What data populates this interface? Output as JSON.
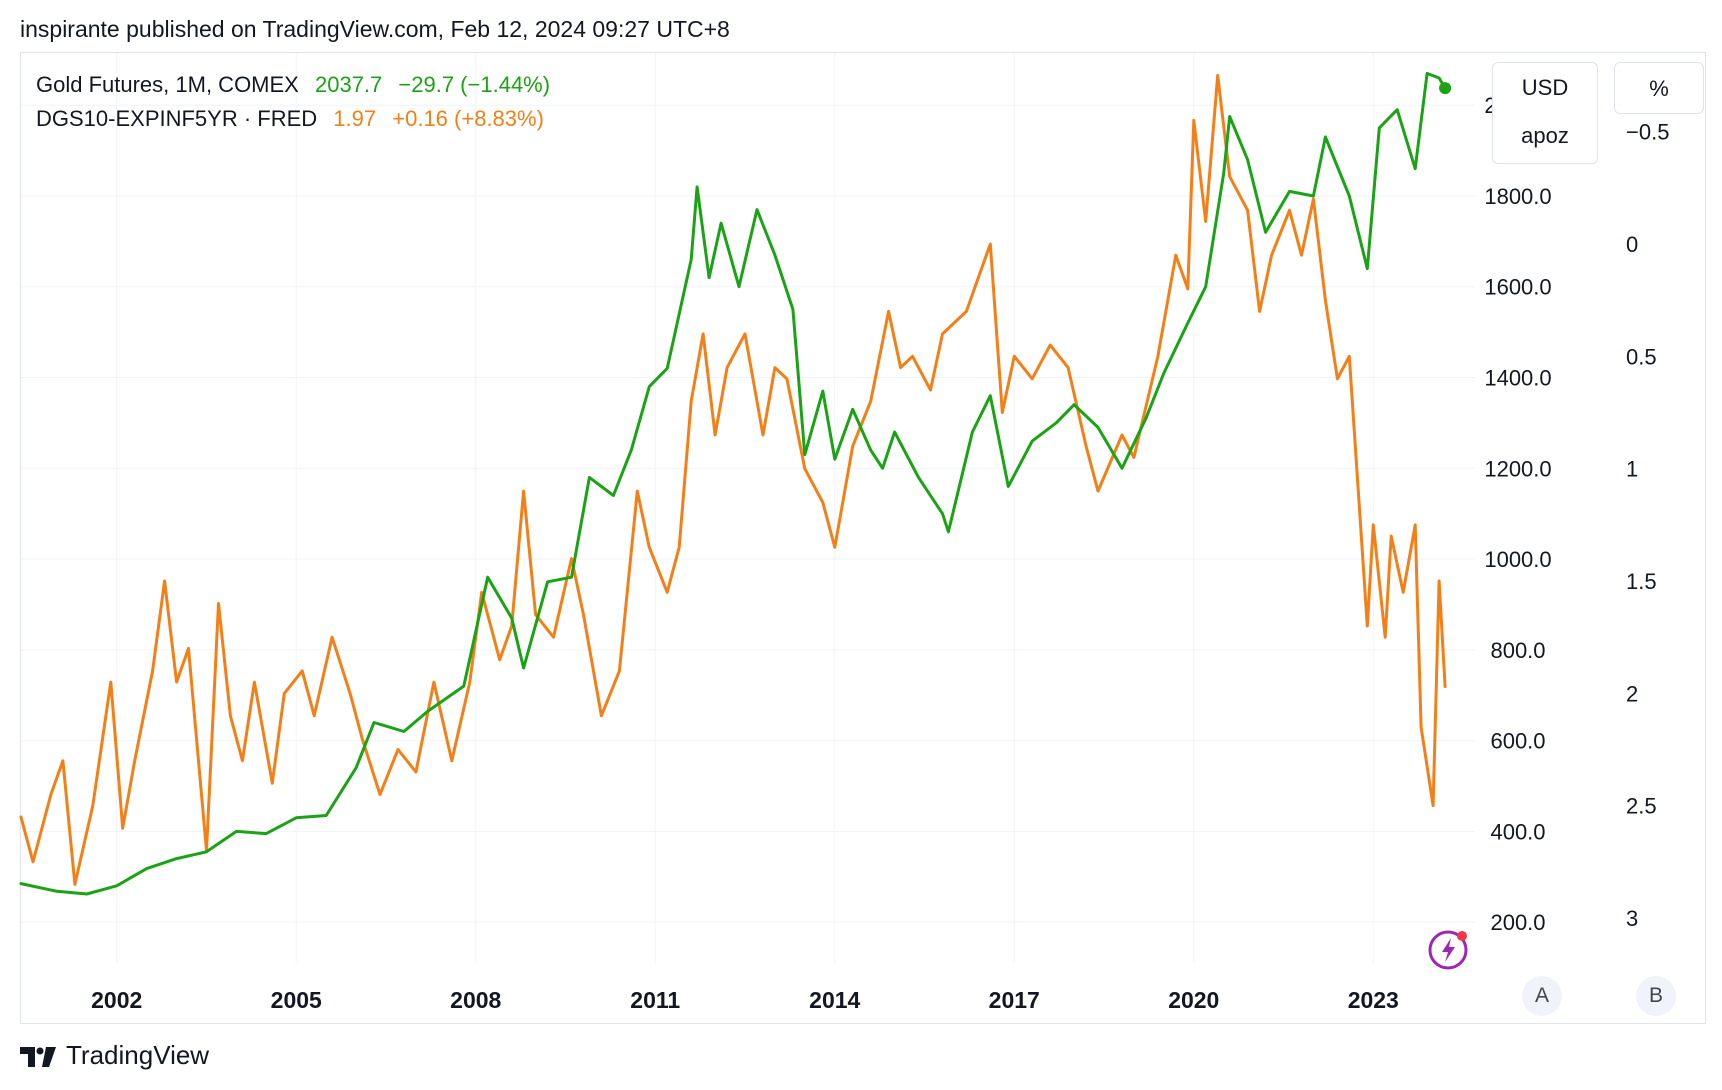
{
  "header": {
    "text": "inspirante published on TradingView.com, Feb 12, 2024 09:27 UTC+8"
  },
  "legend": {
    "gold": {
      "name": "Gold Futures, 1M, COMEX",
      "value": "2037.7",
      "change": "−29.7 (−1.44%)",
      "color": "#1aa314"
    },
    "yield": {
      "name": "DGS10-EXPINF5YR · FRED",
      "value": "1.97",
      "change": "+0.16 (+8.83%)",
      "color": "#f57f17"
    }
  },
  "buttons": {
    "currency": "USD",
    "unit": "apoz",
    "percent": "%",
    "axis_a": "A",
    "axis_b": "B"
  },
  "footer": {
    "brand": "TradingView"
  },
  "icons": {
    "footer_logo": "tradingview-logo-icon",
    "alerts": "lightning-bolt-icon"
  },
  "chart_data": {
    "type": "line",
    "x_ticks": [
      "2002",
      "2005",
      "2008",
      "2011",
      "2014",
      "2017",
      "2020",
      "2023"
    ],
    "x_range": [
      2000.4,
      2024.7
    ],
    "left_axis": {
      "label": "USD",
      "unit": "apoz",
      "ticks": [
        "2000.0",
        "1800.0",
        "1600.0",
        "1400.0",
        "1200.0",
        "1000.0",
        "800.0",
        "600.0",
        "400.0",
        "200.0"
      ],
      "range": [
        110,
        2115
      ]
    },
    "right_axis": {
      "label": "%",
      "inverted": true,
      "ticks": [
        "−0.5",
        "0",
        "0.5",
        "1",
        "1.5",
        "2",
        "2.5",
        "3"
      ],
      "range": [
        -0.85,
        3.2
      ]
    },
    "grid": true,
    "series": [
      {
        "name": "Gold Futures, 1M, COMEX",
        "axis": "left",
        "color": "#1aa314",
        "last_value": 2037.7,
        "points": [
          [
            2000.4,
            285
          ],
          [
            2001.0,
            268
          ],
          [
            2001.5,
            262
          ],
          [
            2002.0,
            280
          ],
          [
            2002.5,
            318
          ],
          [
            2003.0,
            340
          ],
          [
            2003.5,
            355
          ],
          [
            2004.0,
            400
          ],
          [
            2004.5,
            395
          ],
          [
            2005.0,
            430
          ],
          [
            2005.5,
            435
          ],
          [
            2006.0,
            540
          ],
          [
            2006.3,
            640
          ],
          [
            2006.8,
            620
          ],
          [
            2007.2,
            665
          ],
          [
            2007.8,
            720
          ],
          [
            2008.2,
            960
          ],
          [
            2008.6,
            870
          ],
          [
            2008.8,
            760
          ],
          [
            2009.2,
            950
          ],
          [
            2009.6,
            960
          ],
          [
            2009.9,
            1180
          ],
          [
            2010.3,
            1140
          ],
          [
            2010.6,
            1240
          ],
          [
            2010.9,
            1380
          ],
          [
            2011.2,
            1420
          ],
          [
            2011.6,
            1660
          ],
          [
            2011.7,
            1820
          ],
          [
            2011.9,
            1620
          ],
          [
            2012.1,
            1740
          ],
          [
            2012.4,
            1600
          ],
          [
            2012.7,
            1770
          ],
          [
            2013.0,
            1670
          ],
          [
            2013.3,
            1550
          ],
          [
            2013.5,
            1230
          ],
          [
            2013.8,
            1370
          ],
          [
            2014.0,
            1220
          ],
          [
            2014.3,
            1330
          ],
          [
            2014.6,
            1240
          ],
          [
            2014.8,
            1200
          ],
          [
            2015.0,
            1280
          ],
          [
            2015.4,
            1180
          ],
          [
            2015.8,
            1100
          ],
          [
            2015.9,
            1060
          ],
          [
            2016.3,
            1280
          ],
          [
            2016.6,
            1360
          ],
          [
            2016.9,
            1160
          ],
          [
            2017.3,
            1260
          ],
          [
            2017.7,
            1300
          ],
          [
            2018.0,
            1340
          ],
          [
            2018.4,
            1290
          ],
          [
            2018.8,
            1200
          ],
          [
            2019.2,
            1310
          ],
          [
            2019.5,
            1410
          ],
          [
            2019.9,
            1520
          ],
          [
            2020.2,
            1600
          ],
          [
            2020.5,
            1850
          ],
          [
            2020.6,
            1975
          ],
          [
            2020.9,
            1880
          ],
          [
            2021.2,
            1720
          ],
          [
            2021.6,
            1810
          ],
          [
            2022.0,
            1800
          ],
          [
            2022.2,
            1930
          ],
          [
            2022.6,
            1800
          ],
          [
            2022.9,
            1640
          ],
          [
            2023.1,
            1950
          ],
          [
            2023.4,
            1990
          ],
          [
            2023.7,
            1860
          ],
          [
            2023.9,
            2070
          ],
          [
            2024.1,
            2060
          ],
          [
            2024.2,
            2037.7
          ]
        ]
      },
      {
        "name": "DGS10-EXPINF5YR · FRED",
        "axis": "right",
        "color": "#f57f17",
        "last_value": 1.97,
        "points": [
          [
            2000.4,
            2.55
          ],
          [
            2000.6,
            2.75
          ],
          [
            2000.9,
            2.45
          ],
          [
            2001.1,
            2.3
          ],
          [
            2001.3,
            2.85
          ],
          [
            2001.6,
            2.5
          ],
          [
            2001.9,
            1.95
          ],
          [
            2002.1,
            2.6
          ],
          [
            2002.3,
            2.3
          ],
          [
            2002.6,
            1.9
          ],
          [
            2002.8,
            1.5
          ],
          [
            2003.0,
            1.95
          ],
          [
            2003.2,
            1.8
          ],
          [
            2003.5,
            2.7
          ],
          [
            2003.7,
            1.6
          ],
          [
            2003.9,
            2.1
          ],
          [
            2004.1,
            2.3
          ],
          [
            2004.3,
            1.95
          ],
          [
            2004.6,
            2.4
          ],
          [
            2004.8,
            2.0
          ],
          [
            2005.1,
            1.9
          ],
          [
            2005.3,
            2.1
          ],
          [
            2005.6,
            1.75
          ],
          [
            2005.9,
            2.0
          ],
          [
            2006.1,
            2.2
          ],
          [
            2006.4,
            2.45
          ],
          [
            2006.7,
            2.25
          ],
          [
            2007.0,
            2.35
          ],
          [
            2007.3,
            1.95
          ],
          [
            2007.6,
            2.3
          ],
          [
            2007.9,
            1.95
          ],
          [
            2008.1,
            1.55
          ],
          [
            2008.4,
            1.85
          ],
          [
            2008.6,
            1.7
          ],
          [
            2008.8,
            1.1
          ],
          [
            2009.0,
            1.65
          ],
          [
            2009.3,
            1.75
          ],
          [
            2009.6,
            1.4
          ],
          [
            2009.8,
            1.65
          ],
          [
            2010.1,
            2.1
          ],
          [
            2010.4,
            1.9
          ],
          [
            2010.7,
            1.1
          ],
          [
            2010.9,
            1.35
          ],
          [
            2011.2,
            1.55
          ],
          [
            2011.4,
            1.35
          ],
          [
            2011.6,
            0.7
          ],
          [
            2011.8,
            0.4
          ],
          [
            2012.0,
            0.85
          ],
          [
            2012.2,
            0.55
          ],
          [
            2012.5,
            0.4
          ],
          [
            2012.8,
            0.85
          ],
          [
            2013.0,
            0.55
          ],
          [
            2013.2,
            0.6
          ],
          [
            2013.5,
            1.0
          ],
          [
            2013.8,
            1.15
          ],
          [
            2014.0,
            1.35
          ],
          [
            2014.3,
            0.9
          ],
          [
            2014.6,
            0.7
          ],
          [
            2014.9,
            0.3
          ],
          [
            2015.1,
            0.55
          ],
          [
            2015.3,
            0.5
          ],
          [
            2015.6,
            0.65
          ],
          [
            2015.8,
            0.4
          ],
          [
            2016.2,
            0.3
          ],
          [
            2016.6,
            0.0
          ],
          [
            2016.8,
            0.75
          ],
          [
            2017.0,
            0.5
          ],
          [
            2017.3,
            0.6
          ],
          [
            2017.6,
            0.45
          ],
          [
            2017.9,
            0.55
          ],
          [
            2018.2,
            0.9
          ],
          [
            2018.4,
            1.1
          ],
          [
            2018.8,
            0.85
          ],
          [
            2019.0,
            0.95
          ],
          [
            2019.4,
            0.5
          ],
          [
            2019.7,
            0.05
          ],
          [
            2019.9,
            0.2
          ],
          [
            2020.0,
            -0.55
          ],
          [
            2020.2,
            -0.1
          ],
          [
            2020.4,
            -0.75
          ],
          [
            2020.6,
            -0.3
          ],
          [
            2020.9,
            -0.15
          ],
          [
            2021.1,
            0.3
          ],
          [
            2021.3,
            0.05
          ],
          [
            2021.6,
            -0.15
          ],
          [
            2021.8,
            0.05
          ],
          [
            2022.0,
            -0.2
          ],
          [
            2022.2,
            0.25
          ],
          [
            2022.4,
            0.6
          ],
          [
            2022.6,
            0.5
          ],
          [
            2022.8,
            1.3
          ],
          [
            2022.9,
            1.7
          ],
          [
            2023.0,
            1.25
          ],
          [
            2023.2,
            1.75
          ],
          [
            2023.3,
            1.3
          ],
          [
            2023.5,
            1.55
          ],
          [
            2023.7,
            1.25
          ],
          [
            2023.8,
            2.15
          ],
          [
            2024.0,
            2.5
          ],
          [
            2024.1,
            1.5
          ],
          [
            2024.2,
            1.97
          ]
        ]
      }
    ]
  }
}
